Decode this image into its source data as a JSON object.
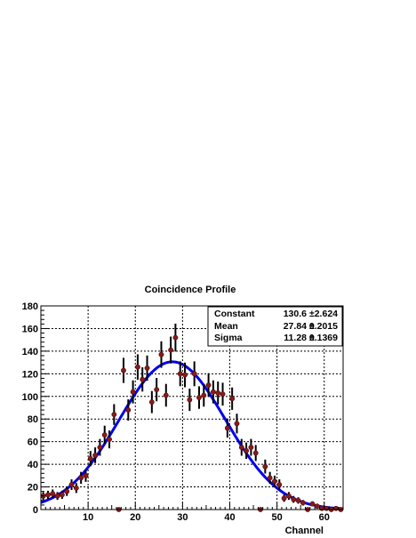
{
  "chart_data": {
    "type": "scatter",
    "title": "Coincidence Profile",
    "xlabel": "Channel",
    "ylabel": "",
    "xlim": [
      0,
      64
    ],
    "ylim": [
      0,
      180
    ],
    "x_ticks": [
      10,
      20,
      30,
      40,
      50,
      60
    ],
    "y_ticks": [
      0,
      20,
      40,
      60,
      80,
      100,
      120,
      140,
      160,
      180
    ],
    "grid": true,
    "series": [
      {
        "kind": "points_with_errorbars",
        "color": "#8b1a1a",
        "points": [
          {
            "x": 0.5,
            "y": 12
          },
          {
            "x": 1.5,
            "y": 13
          },
          {
            "x": 2.5,
            "y": 14
          },
          {
            "x": 3.5,
            "y": 12
          },
          {
            "x": 4.5,
            "y": 13
          },
          {
            "x": 5.5,
            "y": 16
          },
          {
            "x": 6.5,
            "y": 22
          },
          {
            "x": 7.5,
            "y": 19
          },
          {
            "x": 8.5,
            "y": 28
          },
          {
            "x": 9.5,
            "y": 30
          },
          {
            "x": 10.5,
            "y": 45
          },
          {
            "x": 11.5,
            "y": 48
          },
          {
            "x": 12.5,
            "y": 55
          },
          {
            "x": 13.5,
            "y": 66
          },
          {
            "x": 14.5,
            "y": 62
          },
          {
            "x": 15.5,
            "y": 84
          },
          {
            "x": 16.5,
            "y": 0
          },
          {
            "x": 17.5,
            "y": 123
          },
          {
            "x": 18.5,
            "y": 88
          },
          {
            "x": 19.5,
            "y": 104
          },
          {
            "x": 20.5,
            "y": 126
          },
          {
            "x": 21.5,
            "y": 115
          },
          {
            "x": 22.5,
            "y": 125
          },
          {
            "x": 23.5,
            "y": 95
          },
          {
            "x": 24.5,
            "y": 106
          },
          {
            "x": 25.5,
            "y": 137
          },
          {
            "x": 26.5,
            "y": 101
          },
          {
            "x": 27.5,
            "y": 141
          },
          {
            "x": 28.5,
            "y": 152
          },
          {
            "x": 29.5,
            "y": 120
          },
          {
            "x": 30.5,
            "y": 119
          },
          {
            "x": 31.5,
            "y": 97
          },
          {
            "x": 32.5,
            "y": 120
          },
          {
            "x": 33.5,
            "y": 99
          },
          {
            "x": 34.5,
            "y": 101
          },
          {
            "x": 35.5,
            "y": 110
          },
          {
            "x": 36.5,
            "y": 104
          },
          {
            "x": 37.5,
            "y": 103
          },
          {
            "x": 38.5,
            "y": 102
          },
          {
            "x": 39.5,
            "y": 72
          },
          {
            "x": 40.5,
            "y": 98
          },
          {
            "x": 41.5,
            "y": 76
          },
          {
            "x": 42.5,
            "y": 55
          },
          {
            "x": 43.5,
            "y": 52
          },
          {
            "x": 44.5,
            "y": 55
          },
          {
            "x": 45.5,
            "y": 50
          },
          {
            "x": 46.5,
            "y": 0
          },
          {
            "x": 47.5,
            "y": 38
          },
          {
            "x": 48.5,
            "y": 28
          },
          {
            "x": 49.5,
            "y": 25
          },
          {
            "x": 50.5,
            "y": 22
          },
          {
            "x": 51.5,
            "y": 10
          },
          {
            "x": 52.5,
            "y": 12
          },
          {
            "x": 53.5,
            "y": 9
          },
          {
            "x": 54.5,
            "y": 8
          },
          {
            "x": 55.5,
            "y": 6
          },
          {
            "x": 56.5,
            "y": 0
          },
          {
            "x": 57.5,
            "y": 5
          },
          {
            "x": 58.5,
            "y": 3
          },
          {
            "x": 59.5,
            "y": 1
          },
          {
            "x": 60.5,
            "y": 1
          },
          {
            "x": 61.5,
            "y": 0
          },
          {
            "x": 62.5,
            "y": 1
          },
          {
            "x": 63.5,
            "y": 0
          }
        ]
      },
      {
        "kind": "gaussian_fit",
        "color": "#0000ee",
        "constant": 130.6,
        "mean": 27.84,
        "sigma": 11.28
      }
    ],
    "stats_box": {
      "position": "top-right",
      "rows": [
        {
          "label": "Constant",
          "value": "130.6",
          "error": "2.624"
        },
        {
          "label": "Mean",
          "value": "27.84",
          "error": "0.2015"
        },
        {
          "label": "Sigma",
          "value": "11.28",
          "error": "0.1369"
        }
      ],
      "pm_symbol": "±"
    }
  }
}
